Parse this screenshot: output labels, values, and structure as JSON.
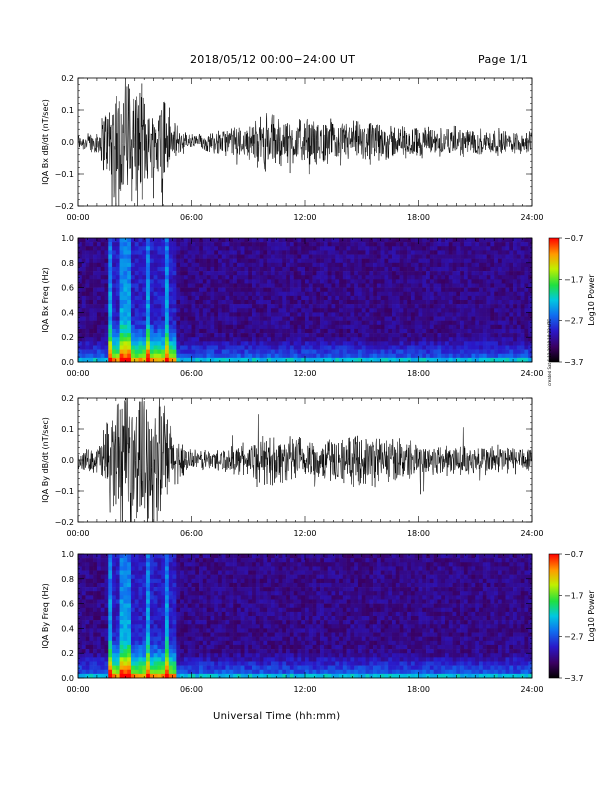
{
  "header": {
    "title": "2018/05/12  00:00−24:00 UT",
    "page": "Page 1/1"
  },
  "footer": {
    "xlabel": "Universal Time (hh:mm)",
    "side_note": "created Sat 6-12-2018 18:22 UTC"
  },
  "chart_data": [
    {
      "type": "line",
      "ylabel": "IQA Bx dB/dt (nT/sec)",
      "ylim": [
        -0.2,
        0.2
      ],
      "yticks": [
        "0.2",
        "0.1",
        "0.0",
        "−0.1",
        "−0.2"
      ],
      "xlim": [
        0,
        24
      ],
      "xticks": [
        "00:00",
        "06:00",
        "12:00",
        "18:00",
        "24:00"
      ],
      "series": [
        {
          "x": [
            0,
            1,
            2,
            3,
            4,
            4.5,
            5,
            6,
            7,
            8,
            9,
            10,
            11,
            12,
            13,
            14,
            15,
            16,
            17,
            18,
            19,
            20,
            21,
            22,
            23,
            24
          ],
          "amplitude": [
            0.025,
            0.035,
            0.2,
            0.2,
            0.09,
            0.2,
            0.06,
            0.025,
            0.03,
            0.045,
            0.05,
            0.09,
            0.07,
            0.07,
            0.065,
            0.065,
            0.06,
            0.06,
            0.05,
            0.05,
            0.045,
            0.045,
            0.04,
            0.04,
            0.035,
            0.035
          ]
        }
      ]
    },
    {
      "type": "heatmap",
      "ylabel": "IQA Bx Freq (Hz)",
      "ylim": [
        0.0,
        1.0
      ],
      "yticks": [
        "1.0",
        "0.8",
        "0.6",
        "0.4",
        "0.2",
        "0.0"
      ],
      "xlim": [
        0,
        24
      ],
      "xticks": [
        "00:00",
        "06:00",
        "12:00",
        "18:00",
        "24:00"
      ],
      "colorbar": {
        "label": "Log10 Power",
        "range": [
          -3.7,
          -0.7
        ],
        "ticks": [
          "−0.7",
          "−1.7",
          "−2.7",
          "−3.7"
        ]
      },
      "bright_bands_hours": [
        1.7,
        2.3,
        2.6,
        3.7,
        4.7
      ]
    },
    {
      "type": "line",
      "ylabel": "IQA By dB/dt (nT/sec)",
      "ylim": [
        -0.2,
        0.2
      ],
      "yticks": [
        "0.2",
        "0.1",
        "0.0",
        "−0.1",
        "−0.2"
      ],
      "xlim": [
        0,
        24
      ],
      "xticks": [
        "00:00",
        "06:00",
        "12:00",
        "18:00",
        "24:00"
      ],
      "series": [
        {
          "x": [
            0,
            1,
            2,
            3,
            4,
            4.5,
            5,
            6,
            7,
            8,
            9,
            10,
            11,
            12,
            13,
            14,
            15,
            16,
            17,
            18,
            19,
            20,
            21,
            22,
            23,
            24
          ],
          "amplitude": [
            0.03,
            0.04,
            0.2,
            0.2,
            0.2,
            0.2,
            0.09,
            0.03,
            0.035,
            0.04,
            0.05,
            0.08,
            0.07,
            0.07,
            0.065,
            0.07,
            0.075,
            0.08,
            0.065,
            0.055,
            0.05,
            0.05,
            0.045,
            0.05,
            0.045,
            0.04
          ]
        }
      ]
    },
    {
      "type": "heatmap",
      "ylabel": "IQA By Freq (Hz)",
      "ylim": [
        0.0,
        1.0
      ],
      "yticks": [
        "1.0",
        "0.8",
        "0.6",
        "0.4",
        "0.2",
        "0.0"
      ],
      "xlim": [
        0,
        24
      ],
      "xticks": [
        "00:00",
        "06:00",
        "12:00",
        "18:00",
        "24:00"
      ],
      "colorbar": {
        "label": "Log10 Power",
        "range": [
          -3.7,
          -0.7
        ],
        "ticks": [
          "−0.7",
          "−1.7",
          "−2.7",
          "−3.7"
        ]
      },
      "bright_bands_hours": [
        1.7,
        2.3,
        2.6,
        3.7,
        4.7
      ]
    }
  ]
}
